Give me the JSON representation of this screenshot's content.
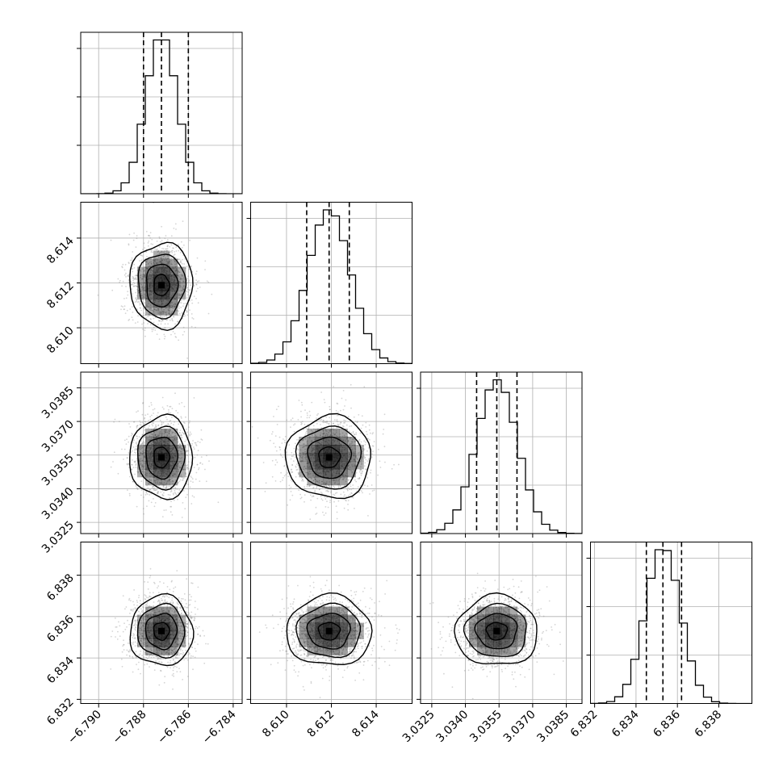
{
  "chart_data": {
    "type": "corner",
    "parameters": [
      {
        "range": [
          -6.7908,
          -6.7836
        ],
        "ticks": [
          -6.79,
          -6.788,
          -6.786,
          -6.784
        ],
        "tick_labels": [
          "−6.790",
          "−6.788",
          "−6.786",
          "−6.784"
        ],
        "quantiles": [
          -6.788,
          -6.7872,
          -6.786
        ],
        "mean": -6.7872,
        "sigma": 0.0007
      },
      {
        "range": [
          8.6084,
          8.6156
        ],
        "ticks": [
          8.61,
          8.612,
          8.614
        ],
        "tick_labels": [
          "8.610",
          "8.612",
          "8.614"
        ],
        "quantiles": [
          8.6109,
          8.6119,
          8.6128
        ],
        "mean": 8.6119,
        "sigma": 0.00095
      },
      {
        "range": [
          3.032,
          3.0392
        ],
        "ticks": [
          3.0325,
          3.034,
          3.0355,
          3.037,
          3.0385
        ],
        "tick_labels": [
          "3.0325",
          "3.0340",
          "3.0355",
          "3.0370",
          "3.0385"
        ],
        "quantiles": [
          3.0345,
          3.0354,
          3.0363
        ],
        "mean": 3.0354,
        "sigma": 0.00092
      },
      {
        "range": [
          6.8318,
          6.8396
        ],
        "ticks": [
          6.832,
          6.834,
          6.836,
          6.838
        ],
        "tick_labels": [
          "6.832",
          "6.834",
          "6.836",
          "6.838"
        ],
        "quantiles": [
          6.8345,
          6.8353,
          6.8362
        ],
        "mean": 6.8353,
        "sigma": 0.00085
      }
    ],
    "histogram_bins": 20,
    "contour_levels_sigma": [
      0.5,
      1.0,
      1.5,
      2.0
    ],
    "grid": true,
    "colors": {
      "lines": "#000000",
      "grid": "#b0b0b0",
      "density": "#000000",
      "samples": "#888888"
    }
  }
}
